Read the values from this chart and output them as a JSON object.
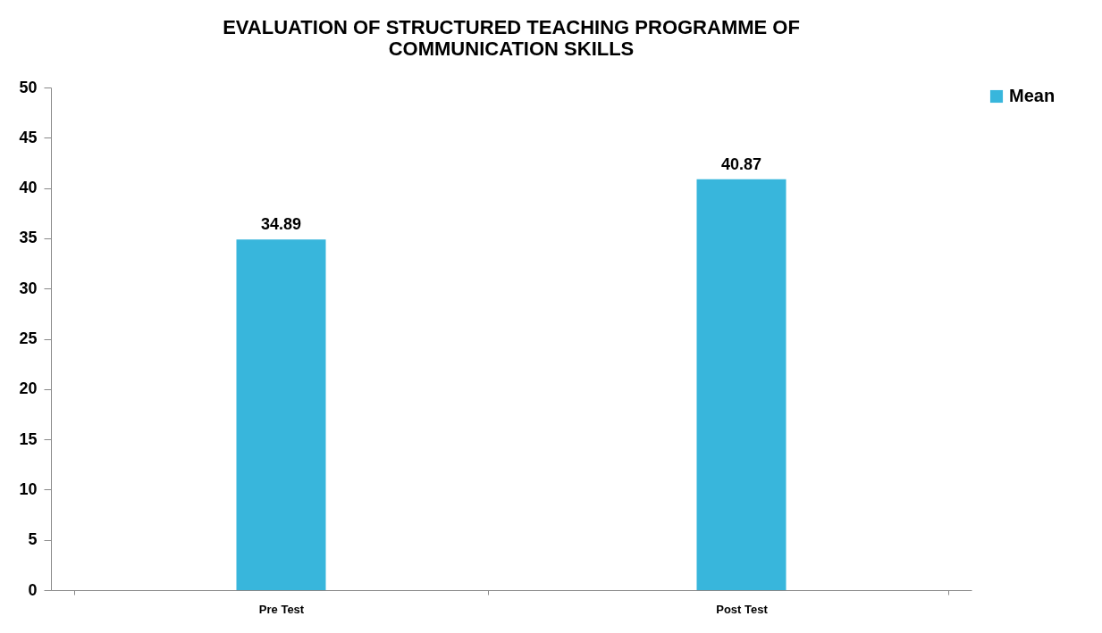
{
  "chart_data": {
    "type": "bar",
    "title": "EVALUATION OF STRUCTURED TEACHING PROGRAMME OF COMMUNICATION SKILLS",
    "categories": [
      "Pre Test",
      "Post Test"
    ],
    "series": [
      {
        "name": "Mean",
        "color": "#38b6dc",
        "values": [
          34.89,
          40.87
        ]
      }
    ],
    "ylim": [
      0,
      50
    ],
    "yticks": [
      0,
      5,
      10,
      15,
      20,
      25,
      30,
      35,
      40,
      45,
      50
    ],
    "data_labels": true,
    "legend": "right"
  }
}
